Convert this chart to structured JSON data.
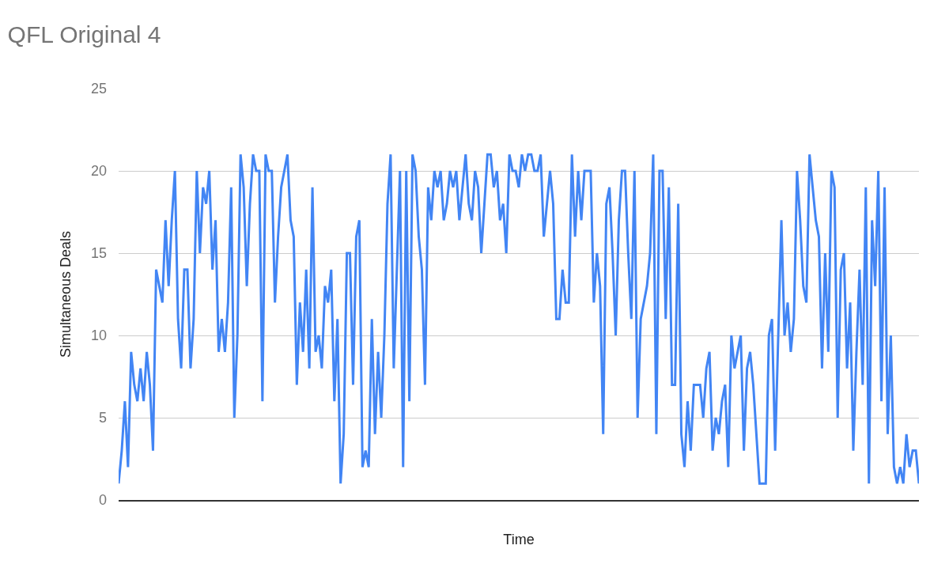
{
  "chart_data": {
    "type": "line",
    "title": "QFL Original 4",
    "xlabel": "Time",
    "ylabel": "Simultaneous Deals",
    "ylim": [
      0,
      25
    ],
    "yticks": [
      0,
      5,
      10,
      15,
      20,
      25
    ],
    "grid": "y",
    "marker": "none",
    "line_style": "solid",
    "categories": [
      null,
      null,
      null,
      null,
      null,
      null,
      null,
      null,
      null,
      null,
      null,
      null,
      null,
      null,
      null,
      null,
      null,
      null,
      null,
      null,
      null,
      null,
      null,
      null,
      null,
      null,
      null,
      null,
      null,
      null,
      null,
      null,
      null,
      null,
      null,
      null,
      null,
      null,
      null,
      null,
      null,
      null,
      null,
      null,
      null,
      null,
      null,
      null,
      null,
      null,
      null,
      null,
      null,
      null,
      null,
      null,
      null,
      null,
      null,
      null,
      null,
      null,
      null,
      null,
      null,
      null,
      null,
      null,
      null,
      null,
      null,
      null,
      null,
      null,
      null,
      null,
      null,
      null,
      null,
      null,
      null,
      null,
      null,
      null,
      null,
      null,
      null,
      null,
      null,
      null,
      null,
      null,
      null,
      null,
      null,
      null,
      null,
      null,
      null,
      null,
      null,
      null,
      null,
      null,
      null,
      null,
      null,
      null,
      null,
      null,
      null,
      null,
      null,
      null,
      null,
      null,
      null,
      null,
      null,
      null,
      null,
      null,
      null,
      null,
      null,
      null,
      null,
      null,
      null,
      null,
      null,
      null,
      null,
      null,
      null,
      null,
      null,
      null,
      null,
      null,
      null,
      null,
      null,
      null,
      null,
      null,
      null,
      null,
      null,
      null,
      null,
      null,
      null,
      null,
      null,
      null,
      null,
      null,
      null,
      null,
      null,
      null,
      null,
      null,
      null,
      null,
      null,
      null,
      null,
      null,
      null,
      null,
      null,
      null,
      null,
      null,
      null,
      null,
      null,
      null,
      null,
      null,
      null,
      null,
      null,
      null,
      null,
      null,
      null,
      null,
      null,
      null,
      null,
      null,
      null,
      null,
      null,
      null,
      null,
      null,
      null,
      null,
      null,
      null,
      null,
      null,
      null,
      null,
      null,
      null,
      null,
      null,
      null,
      null,
      null,
      null,
      null,
      null,
      null,
      null,
      null,
      null,
      null,
      null,
      null,
      null,
      null,
      null,
      null,
      null,
      null,
      null,
      null,
      null,
      null,
      null,
      null,
      null,
      null,
      null,
      null,
      null,
      null,
      null,
      null,
      null,
      null,
      null,
      null,
      null,
      null,
      null,
      null,
      null,
      null,
      null,
      null
    ],
    "series": [
      {
        "color": "#4285f4",
        "values": [
          1,
          3,
          6,
          2,
          9,
          7,
          6,
          8,
          6,
          9,
          7,
          3,
          14,
          13,
          12,
          17,
          13,
          17,
          20,
          11,
          8,
          14,
          14,
          8,
          11,
          20,
          15,
          19,
          18,
          20,
          14,
          17,
          9,
          11,
          9,
          12,
          19,
          5,
          10,
          21,
          19,
          13,
          18,
          21,
          20,
          20,
          6,
          21,
          20,
          20,
          12,
          16,
          19,
          20,
          21,
          17,
          16,
          7,
          12,
          9,
          14,
          8,
          19,
          9,
          10,
          8,
          13,
          12,
          14,
          6,
          11,
          1,
          4,
          15,
          15,
          7,
          16,
          17,
          2,
          3,
          2,
          11,
          4,
          9,
          5,
          10,
          18,
          21,
          8,
          14,
          20,
          2,
          20,
          6,
          21,
          20,
          16,
          14,
          7,
          19,
          17,
          20,
          19,
          20,
          17,
          18,
          20,
          19,
          20,
          17,
          19,
          21,
          18,
          17,
          20,
          19,
          15,
          18,
          21,
          21,
          19,
          20,
          17,
          18,
          15,
          21,
          20,
          20,
          19,
          21,
          20,
          21,
          21,
          20,
          20,
          21,
          16,
          18,
          20,
          18,
          11,
          11,
          14,
          12,
          12,
          21,
          16,
          20,
          17,
          20,
          20,
          20,
          12,
          15,
          13,
          4,
          18,
          19,
          15,
          10,
          17,
          20,
          20,
          15,
          11,
          20,
          5,
          11,
          12,
          13,
          15,
          21,
          4,
          20,
          20,
          11,
          19,
          7,
          7,
          18,
          4,
          2,
          6,
          3,
          7,
          7,
          7,
          5,
          8,
          9,
          3,
          5,
          4,
          6,
          7,
          2,
          10,
          8,
          9,
          10,
          3,
          8,
          9,
          7,
          4,
          1,
          1,
          1,
          10,
          11,
          3,
          10,
          17,
          10,
          12,
          9,
          11,
          20,
          17,
          13,
          12,
          21,
          19,
          17,
          16,
          8,
          15,
          9,
          20,
          19,
          5,
          14,
          15,
          8,
          12,
          3,
          9,
          14,
          7,
          19,
          1,
          17,
          13,
          20,
          6,
          19,
          4,
          10,
          2,
          1,
          2,
          1,
          4,
          2,
          3,
          3,
          1
        ]
      }
    ]
  }
}
